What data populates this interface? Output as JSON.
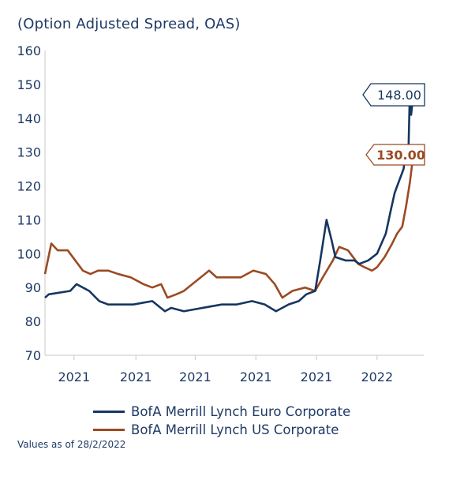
{
  "chart_data": {
    "type": "line",
    "title": "(Option Adjusted Spread, OAS)",
    "ylim": [
      70,
      160
    ],
    "y_ticks": [
      160,
      150,
      140,
      130,
      120,
      110,
      100,
      90,
      80,
      70
    ],
    "x_tick_labels": [
      "2021",
      "2021",
      "2021",
      "2021",
      "2021",
      "2022"
    ],
    "x_range": [
      0,
      30
    ],
    "x_tick_positions": [
      2.3,
      7.2,
      11.9,
      16.7,
      21.5,
      26.3
    ],
    "grid": false,
    "legend_position": "bottom",
    "series": [
      {
        "name": "BofA Merrill Lynch Euro Corporate",
        "color": "#16365f",
        "end_label": "148.00",
        "x": [
          0,
          0.3,
          2.0,
          2.5,
          3.5,
          4.3,
          5.0,
          6.0,
          7.0,
          8.5,
          9.5,
          10.0,
          11.0,
          12.5,
          14.0,
          15.2,
          16.4,
          17.4,
          18.3,
          19.3,
          20.1,
          20.7,
          21.4,
          21.8,
          22.3,
          22.7,
          23.0,
          23.8,
          24.5,
          24.9,
          25.6,
          26.3,
          27.0,
          27.4,
          27.7,
          28.1,
          28.4,
          28.6,
          28.8,
          28.9,
          29.0,
          29.2
        ],
        "y": [
          87,
          88,
          89,
          91,
          89,
          86,
          85,
          85,
          85,
          86,
          83,
          84,
          83,
          84,
          85,
          85,
          86,
          85,
          83,
          85,
          86,
          88,
          89,
          98,
          110,
          104,
          99,
          98,
          98,
          97,
          98,
          100,
          106,
          113,
          118,
          122,
          125,
          130,
          132,
          148,
          141,
          148
        ]
      },
      {
        "name": "BofA Merrill Lynch US Corporate",
        "color": "#9b4a22",
        "end_label": "130.00",
        "x": [
          0,
          0.5,
          1.0,
          1.8,
          2.4,
          3.0,
          3.6,
          4.2,
          5.0,
          5.8,
          6.8,
          7.8,
          8.5,
          9.2,
          9.7,
          10.4,
          11.0,
          12.0,
          13.0,
          13.6,
          14.5,
          15.5,
          16.5,
          17.5,
          18.2,
          18.8,
          19.6,
          20.6,
          21.4,
          22.0,
          22.8,
          23.3,
          24.0,
          24.8,
          25.3,
          25.9,
          26.3,
          26.9,
          27.5,
          27.9,
          28.3,
          28.6,
          28.9,
          29.2
        ],
        "y": [
          94,
          103,
          101,
          101,
          98,
          95,
          94,
          95,
          95,
          94,
          93,
          91,
          90,
          91,
          87,
          88,
          89,
          92,
          95,
          93,
          93,
          93,
          95,
          94,
          91,
          87,
          89,
          90,
          89,
          93,
          98,
          102,
          101,
          97,
          96,
          95,
          96,
          99,
          103,
          106,
          108,
          114,
          121,
          130
        ]
      }
    ]
  },
  "footnote": "Values as of 28/2/2022"
}
